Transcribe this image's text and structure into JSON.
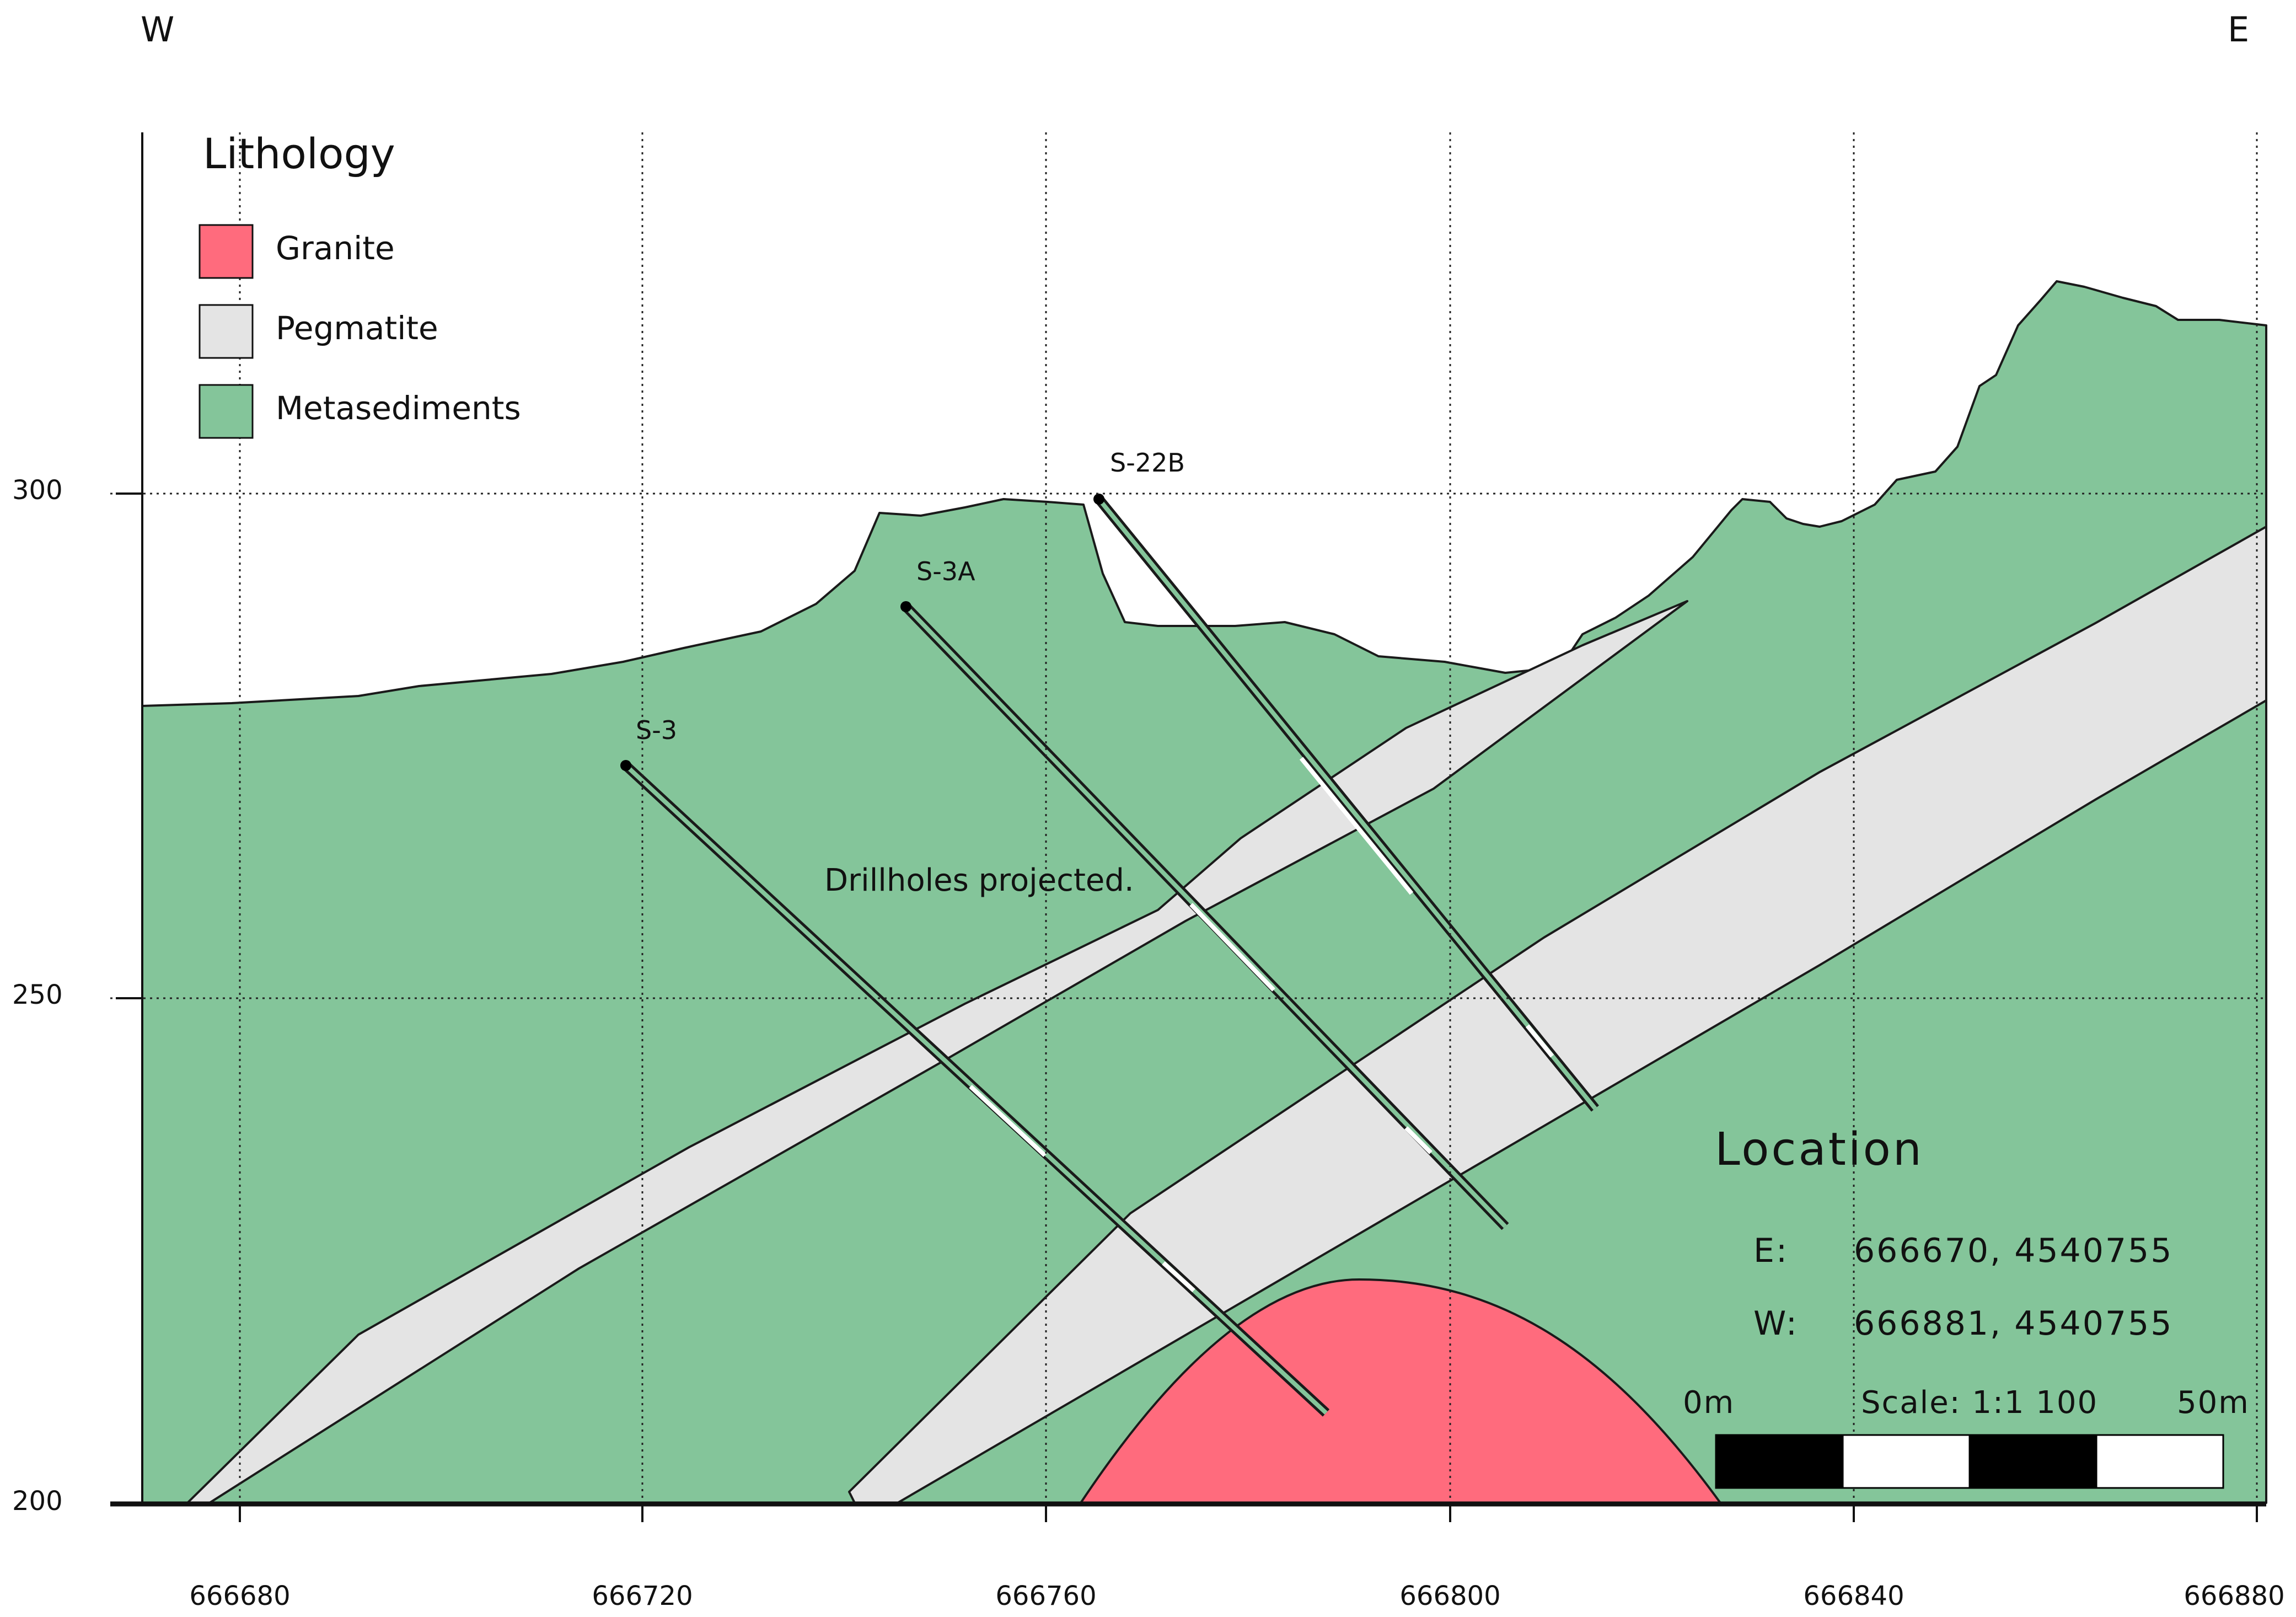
{
  "compass": {
    "west": "W",
    "east": "E"
  },
  "x_axis": {
    "ticks": [
      "666680",
      "666720",
      "666760",
      "666800",
      "666840",
      "666880"
    ]
  },
  "y_axis": {
    "ticks": [
      "300",
      "250",
      "200"
    ]
  },
  "legend": {
    "title": "Lithology",
    "items": [
      {
        "label": "Granite",
        "color": "#ff6b7d"
      },
      {
        "label": "Pegmatite",
        "color": "#e4e4e4"
      },
      {
        "label": "Metasediments",
        "color": "#84c59a"
      }
    ]
  },
  "drillholes": [
    "S-3",
    "S-3A",
    "S-22B"
  ],
  "note": "Drillholes projected.",
  "location": {
    "title": "Location",
    "rows": [
      {
        "key": "E:",
        "value": "666670, 4540755"
      },
      {
        "key": "W:",
        "value": "666881, 4540755"
      }
    ]
  },
  "scale": {
    "start": "0m",
    "label": "Scale: 1:1 100",
    "end": "50m"
  }
}
